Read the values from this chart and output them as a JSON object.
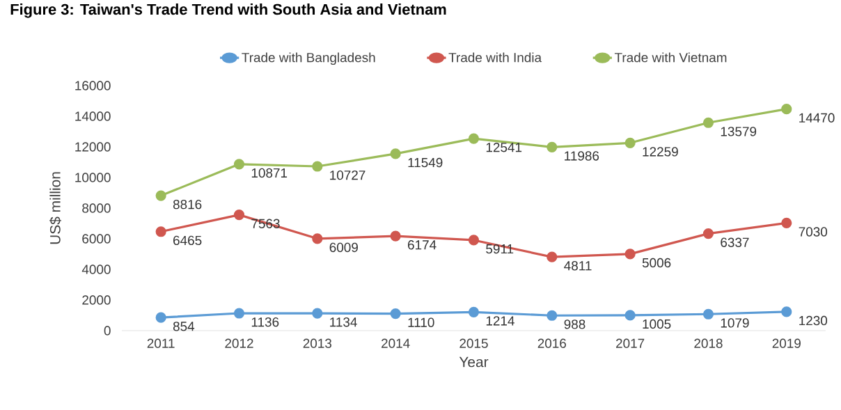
{
  "chart_data": {
    "type": "line",
    "title": "**Figure 3**: Taiwan's Trade Trend with South Asia and Vietnam",
    "xlabel": "Year",
    "ylabel": "US$ million",
    "categories": [
      "2011",
      "2012",
      "2013",
      "2014",
      "2015",
      "2016",
      "2017",
      "2018",
      "2019"
    ],
    "series": [
      {
        "name": "Trade with Bangladesh",
        "color": "#5b9bd5",
        "values": [
          854,
          1136,
          1134,
          1110,
          1214,
          988,
          1005,
          1079,
          1230
        ]
      },
      {
        "name": "Trade with India",
        "color": "#d0574f",
        "values": [
          6465,
          7563,
          6009,
          6174,
          5911,
          4811,
          5006,
          6337,
          7030
        ]
      },
      {
        "name": "Trade with Vietnam",
        "color": "#9bbb59",
        "values": [
          8816,
          10871,
          10727,
          11549,
          12541,
          11986,
          12259,
          13579,
          14470
        ]
      }
    ],
    "ylim": [
      0,
      16000
    ],
    "yticks": [
      0,
      2000,
      4000,
      6000,
      8000,
      10000,
      12000,
      14000,
      16000
    ],
    "data_labels": true,
    "legend": "top",
    "marker": "circle",
    "line_style": "solid"
  }
}
